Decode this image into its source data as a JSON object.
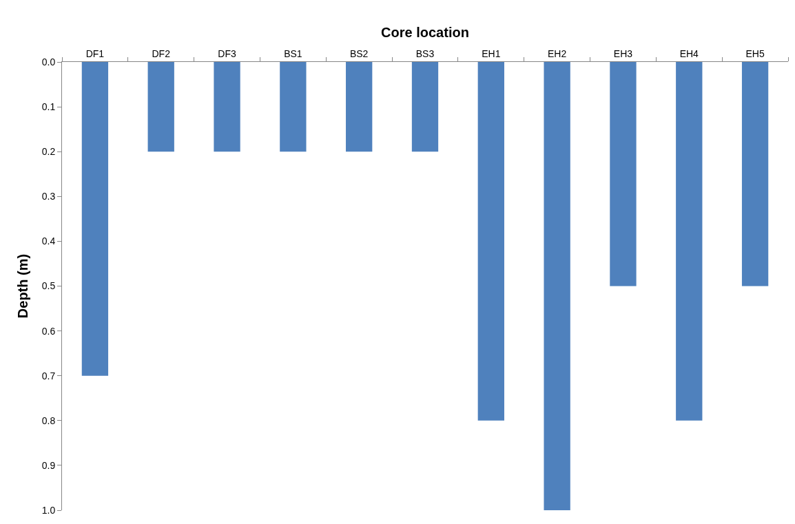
{
  "chart_data": {
    "type": "bar",
    "xlabel": "Core location",
    "ylabel": "Depth (m)",
    "categories": [
      "DF1",
      "DF2",
      "DF3",
      "BS1",
      "BS2",
      "BS3",
      "EH1",
      "EH2",
      "EH3",
      "EH4",
      "EH5"
    ],
    "values": [
      0.7,
      0.2,
      0.2,
      0.2,
      0.2,
      0.2,
      0.8,
      1.0,
      0.5,
      0.8,
      0.5
    ],
    "color": "#4f81bd",
    "ylim": [
      1.0,
      0
    ],
    "yticks": [
      {
        "value": 0,
        "label": "0.0"
      },
      0.1,
      0.2,
      0.3,
      0.4,
      0.5,
      0.6,
      0.7,
      0.8,
      0.9,
      {
        "value": 1,
        "label": "1.0"
      }
    ],
    "grid": false
  }
}
